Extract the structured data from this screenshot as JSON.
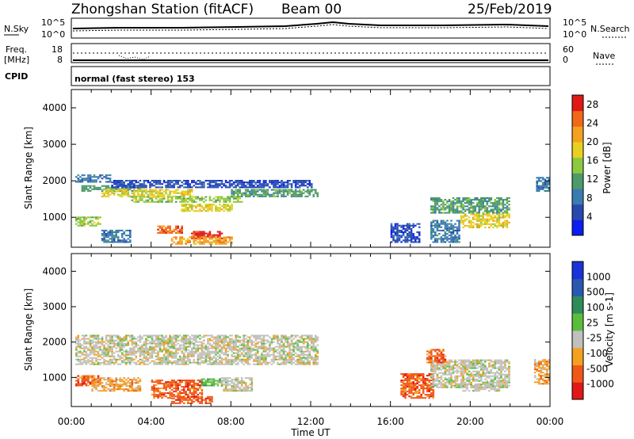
{
  "header": {
    "station": "Zhongshan Station (fitACF)",
    "beam": "Beam 00",
    "date": "25/Feb/2019"
  },
  "top_panel": {
    "left_label": "N.Sky",
    "right_label": "N.Search",
    "left_ticks": [
      "10^5",
      "10^0"
    ],
    "right_ticks": [
      "10^5",
      "10^0"
    ]
  },
  "freq_panel": {
    "left_label_1": "Freq.",
    "left_label_2": "[MHz]",
    "left_ticks": [
      "18",
      "8"
    ],
    "right_label": "Nave",
    "right_ticks": [
      "60",
      "0"
    ]
  },
  "cpid": {
    "label": "CPID",
    "text": "normal (fast stereo) 153"
  },
  "colors": {
    "power": [
      "#0a1ef0",
      "#2848b0",
      "#3a7cb0",
      "#4e9a6a",
      "#8cc840",
      "#e8d020",
      "#f4a020",
      "#f06818",
      "#e01818"
    ],
    "velocity": [
      "#e01818",
      "#f05818",
      "#f4a020",
      "#c0c0bc",
      "#5abe3c",
      "#2e8c5a",
      "#2a58b0",
      "#1a32d8"
    ],
    "grey": "#c0c0bc"
  },
  "chart_data": [
    {
      "type": "heatmap",
      "name": "power",
      "ylabel": "Slant Range [km]",
      "xlabel": "Time UT",
      "x_ticks": [
        "00:00",
        "04:00",
        "08:00",
        "12:00",
        "16:00",
        "20:00",
        "00:00"
      ],
      "y_ticks": [
        "1000",
        "2000",
        "3000",
        "4000"
      ],
      "xlim": [
        0,
        24
      ],
      "ylim": [
        180,
        4500
      ],
      "colorbar_label": "Power [dB]",
      "colorbar_ticks": [
        "4",
        "8",
        "12",
        "16",
        "20",
        "24",
        "28"
      ],
      "colorbar_range": [
        0,
        30
      ],
      "regions": [
        {
          "t": [
            0.2,
            2.0
          ],
          "r": [
            1950,
            2150
          ],
          "level": 2
        },
        {
          "t": [
            0.5,
            3.5
          ],
          "r": [
            1700,
            1850
          ],
          "level": 3
        },
        {
          "t": [
            1.5,
            6.0
          ],
          "r": [
            1550,
            1750
          ],
          "level": 5
        },
        {
          "t": [
            3.0,
            8.5
          ],
          "r": [
            1400,
            1550
          ],
          "level": 4
        },
        {
          "t": [
            5.5,
            8.0
          ],
          "r": [
            1150,
            1350
          ],
          "level": 5
        },
        {
          "t": [
            8.0,
            12.3
          ],
          "r": [
            1550,
            1750
          ],
          "level": 3
        },
        {
          "t": [
            2.0,
            12.0
          ],
          "r": [
            1800,
            2000
          ],
          "level": 1
        },
        {
          "t": [
            0.2,
            1.5
          ],
          "r": [
            750,
            1000
          ],
          "level": 4
        },
        {
          "t": [
            1.5,
            3.0
          ],
          "r": [
            300,
            650
          ],
          "level": 2
        },
        {
          "t": [
            4.3,
            5.5
          ],
          "r": [
            550,
            750
          ],
          "level": 7
        },
        {
          "t": [
            6.0,
            7.5
          ],
          "r": [
            400,
            600
          ],
          "level": 8
        },
        {
          "t": [
            5.0,
            8.0
          ],
          "r": [
            250,
            450
          ],
          "level": 6
        },
        {
          "t": [
            18.0,
            22.0
          ],
          "r": [
            1100,
            1550
          ],
          "level": 3
        },
        {
          "t": [
            19.5,
            22.0
          ],
          "r": [
            700,
            1100
          ],
          "level": 5
        },
        {
          "t": [
            18.0,
            19.5
          ],
          "r": [
            300,
            900
          ],
          "level": 2
        },
        {
          "t": [
            16.0,
            17.5
          ],
          "r": [
            300,
            800
          ],
          "level": 1
        },
        {
          "t": [
            23.3,
            24.0
          ],
          "r": [
            1700,
            2100
          ],
          "level": 2
        }
      ]
    },
    {
      "type": "heatmap",
      "name": "velocity",
      "ylabel": "Slant Range [km]",
      "xlabel": "Time UT",
      "x_ticks": [
        "00:00",
        "04:00",
        "08:00",
        "12:00",
        "16:00",
        "20:00",
        "00:00"
      ],
      "y_ticks": [
        "1000",
        "2000",
        "3000",
        "4000"
      ],
      "xlim": [
        0,
        24
      ],
      "ylim": [
        180,
        4500
      ],
      "colorbar_label": "Velocity [m s-1]",
      "colorbar_ticks": [
        "1000",
        "500",
        "100",
        "25",
        "-25",
        "-100",
        "-500",
        "-1000"
      ],
      "regions": [
        {
          "t": [
            0.2,
            12.3
          ],
          "r": [
            1350,
            2200
          ],
          "level": 3
        },
        {
          "t": [
            0.2,
            1.5
          ],
          "r": [
            750,
            1050
          ],
          "level": 1
        },
        {
          "t": [
            1.0,
            3.5
          ],
          "r": [
            600,
            1000
          ],
          "level": 2
        },
        {
          "t": [
            4.0,
            6.5
          ],
          "r": [
            400,
            900
          ],
          "level": 1
        },
        {
          "t": [
            6.5,
            7.8
          ],
          "r": [
            750,
            950
          ],
          "level": 4
        },
        {
          "t": [
            7.5,
            9.0
          ],
          "r": [
            600,
            1000
          ],
          "level": 3
        },
        {
          "t": [
            5.0,
            7.0
          ],
          "r": [
            250,
            450
          ],
          "level": 1
        },
        {
          "t": [
            16.5,
            18.2
          ],
          "r": [
            400,
            1100
          ],
          "level": 1
        },
        {
          "t": [
            18.0,
            22.0
          ],
          "r": [
            700,
            1500
          ],
          "level": 3
        },
        {
          "t": [
            19.5,
            21.5
          ],
          "r": [
            600,
            800
          ],
          "level": 3
        },
        {
          "t": [
            17.8,
            18.8
          ],
          "r": [
            1400,
            1800
          ],
          "level": 1
        },
        {
          "t": [
            23.2,
            24.0
          ],
          "r": [
            800,
            1500
          ],
          "level": 2
        }
      ]
    }
  ]
}
